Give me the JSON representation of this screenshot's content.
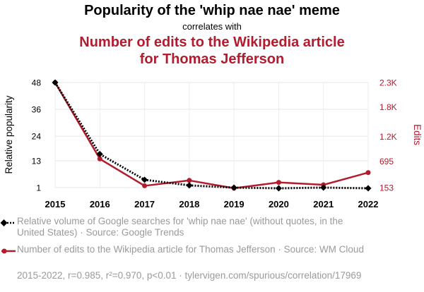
{
  "header": {
    "title": "Popularity of the 'whip nae nae' meme",
    "subtitle": "correlates with",
    "title2": "Number of edits to the Wikipedia article for Thomas Jefferson"
  },
  "colors": {
    "series1": "#000000",
    "series2": "#b31b2e",
    "legend_text": "#9a9a9a"
  },
  "chart_data": {
    "type": "line",
    "categories": [
      "2015",
      "2016",
      "2017",
      "2018",
      "2019",
      "2020",
      "2021",
      "2022"
    ],
    "series": [
      {
        "name": "Relative volume of Google searches for 'whip nae nae' (without quotes, in the United States) · Source: Google Trends",
        "axis": "left",
        "style": "dotted",
        "values": [
          48,
          16,
          4.5,
          2,
          1,
          0.7,
          1,
          0.7
        ]
      },
      {
        "name": "Number of edits to the Wikipedia article for Thomas Jefferson · Source: WM Cloud",
        "axis": "right",
        "style": "solid",
        "values": [
          2300,
          740,
          190,
          300,
          140,
          260,
          210,
          460
        ]
      }
    ],
    "yleft": {
      "label": "Relative popularity",
      "ticks": [
        1,
        13,
        24,
        36,
        48
      ],
      "tick_labels": [
        "1",
        "13",
        "24",
        "36",
        "48"
      ],
      "ylim": [
        1,
        48
      ]
    },
    "yright": {
      "label": "Edits",
      "ticks": [
        153,
        695,
        1200,
        1800,
        2300
      ],
      "tick_labels": [
        "153",
        "695",
        "1.2K",
        "1.8K",
        "2.3K"
      ],
      "ylim": [
        153,
        2300
      ]
    }
  },
  "legend": {
    "items": [
      "Relative volume of Google searches for 'whip nae nae' (without quotes, in the United States) · Source: Google Trends",
      "Number of edits to the Wikipedia article for Thomas Jefferson · Source: WM Cloud"
    ]
  },
  "footer": {
    "text": "2015-2022, r=0.985, r²=0.970, p<0.01 · tylervigen.com/spurious/correlation/17969"
  }
}
